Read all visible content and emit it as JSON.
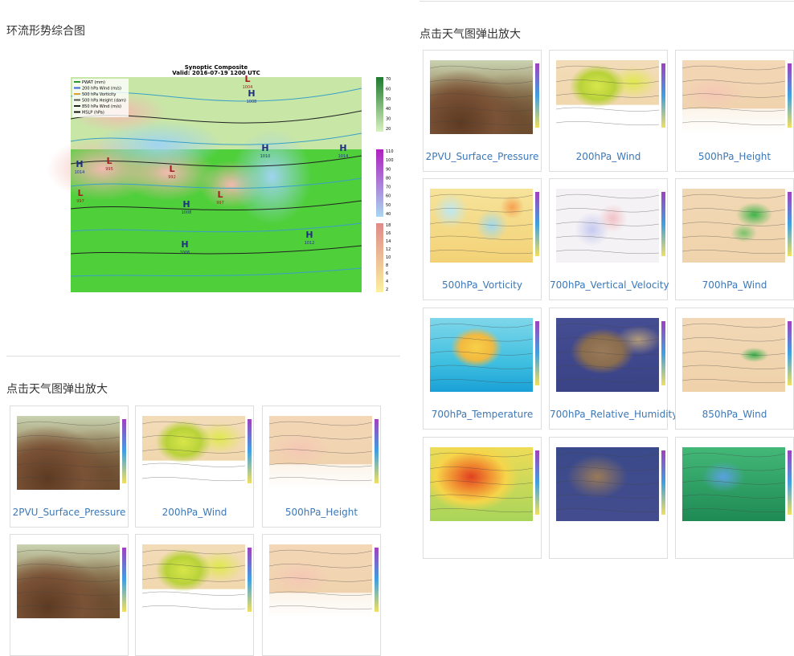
{
  "composite": {
    "title": "环流形势综合图",
    "map_title": "Synoptic Composite",
    "map_valid": "Valid: 2016-07-19 1200 UTC",
    "legend": [
      "PWAT (mm)",
      "200 hPa Wind (m/s)",
      "500 hPa Vorticity",
      "500 hPa Height (dam)",
      "850 hPa Wind (m/s)",
      "MSLP (hPa)"
    ],
    "colorbars": [
      [
        "70",
        "60",
        "50",
        "40",
        "30",
        "20"
      ],
      [
        "110",
        "100",
        "90",
        "80",
        "70",
        "60",
        "50",
        "40"
      ],
      [
        "18",
        "16",
        "14",
        "12",
        "10",
        "8",
        "6",
        "4",
        "2"
      ]
    ],
    "pressure_centers": [
      {
        "label": "H",
        "value": "1014"
      },
      {
        "label": "L",
        "value": "995"
      },
      {
        "label": "L",
        "value": "997"
      },
      {
        "label": "L",
        "value": "992"
      },
      {
        "label": "H",
        "value": "1008"
      },
      {
        "label": "H",
        "value": "1006"
      },
      {
        "label": "L",
        "value": "997"
      },
      {
        "label": "H",
        "value": "1010"
      },
      {
        "label": "H",
        "value": "1014"
      },
      {
        "label": "H",
        "value": "1012"
      },
      {
        "label": "L",
        "value": "1004"
      },
      {
        "label": "H",
        "value": "1008"
      }
    ]
  },
  "left_gallery": {
    "title": "点击天气图弹出放大",
    "items": [
      "2PVU_Surface_Pressure",
      "200hPa_Wind",
      "500hPa_Height"
    ]
  },
  "right_gallery": {
    "title": "点击天气图弹出放大",
    "items": [
      "2PVU_Surface_Pressure",
      "200hPa_Wind",
      "500hPa_Height",
      "500hPa_Vorticity",
      "700hPa_Vertical_Velocity",
      "700hPa_Wind",
      "700hPa_Temperature",
      "700hPa_Relative_Humidity",
      "850hPa_Wind"
    ]
  }
}
